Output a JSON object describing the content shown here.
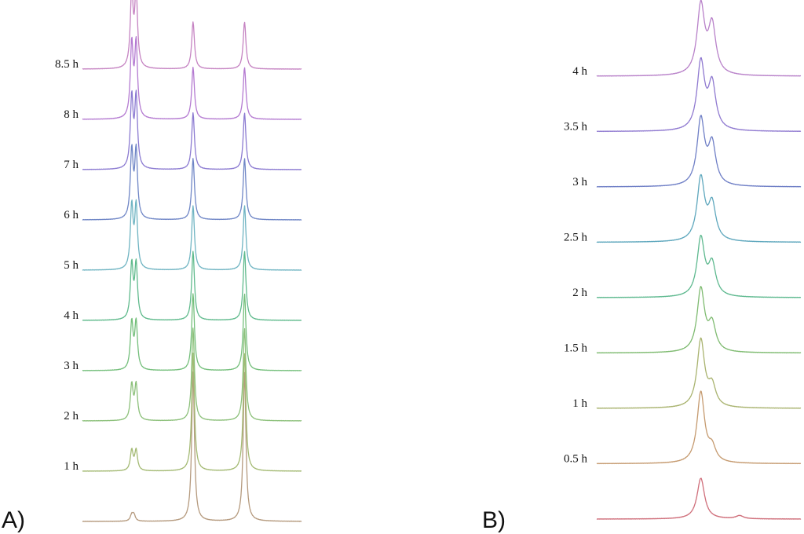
{
  "chart_data": [
    {
      "type": "line",
      "panel": "A)",
      "title": "",
      "xlabel": "",
      "ylabel": "",
      "grid": false,
      "legend": "none",
      "series": [
        {
          "name": "",
          "color": "#b59a7e",
          "peaks": [
            {
              "pos": 0.225,
              "height": 8
            },
            {
              "pos": 0.235,
              "height": 8
            },
            {
              "pos": 0.505,
              "height": 190
            },
            {
              "pos": 0.74,
              "height": 190
            }
          ]
        },
        {
          "name": "1 h",
          "color": "#a4ba74",
          "peaks": [
            {
              "pos": 0.225,
              "height": 26
            },
            {
              "pos": 0.245,
              "height": 26
            },
            {
              "pos": 0.505,
              "height": 150
            },
            {
              "pos": 0.74,
              "height": 150
            }
          ]
        },
        {
          "name": "2 h",
          "color": "#8cc07a",
          "peaks": [
            {
              "pos": 0.225,
              "height": 45
            },
            {
              "pos": 0.245,
              "height": 45
            },
            {
              "pos": 0.505,
              "height": 118
            },
            {
              "pos": 0.74,
              "height": 118
            }
          ]
        },
        {
          "name": "3 h",
          "color": "#74bf7b",
          "peaks": [
            {
              "pos": 0.225,
              "height": 60
            },
            {
              "pos": 0.245,
              "height": 60
            },
            {
              "pos": 0.505,
              "height": 98
            },
            {
              "pos": 0.74,
              "height": 98
            }
          ]
        },
        {
          "name": "4 h",
          "color": "#5fba8c",
          "peaks": [
            {
              "pos": 0.225,
              "height": 70
            },
            {
              "pos": 0.245,
              "height": 70
            },
            {
              "pos": 0.505,
              "height": 88
            },
            {
              "pos": 0.74,
              "height": 88
            }
          ]
        },
        {
          "name": "5 h",
          "color": "#6fb4c2",
          "peaks": [
            {
              "pos": 0.225,
              "height": 80
            },
            {
              "pos": 0.245,
              "height": 80
            },
            {
              "pos": 0.505,
              "height": 82
            },
            {
              "pos": 0.74,
              "height": 82
            }
          ]
        },
        {
          "name": "6 h",
          "color": "#6f86c6",
          "peaks": [
            {
              "pos": 0.225,
              "height": 86
            },
            {
              "pos": 0.245,
              "height": 86
            },
            {
              "pos": 0.505,
              "height": 78
            },
            {
              "pos": 0.74,
              "height": 78
            }
          ]
        },
        {
          "name": "7 h",
          "color": "#8b7ad1",
          "peaks": [
            {
              "pos": 0.225,
              "height": 90
            },
            {
              "pos": 0.245,
              "height": 90
            },
            {
              "pos": 0.505,
              "height": 72
            },
            {
              "pos": 0.74,
              "height": 72
            }
          ]
        },
        {
          "name": "8 h",
          "color": "#b47ad1",
          "peaks": [
            {
              "pos": 0.225,
              "height": 94
            },
            {
              "pos": 0.245,
              "height": 94
            },
            {
              "pos": 0.505,
              "height": 66
            },
            {
              "pos": 0.74,
              "height": 66
            }
          ]
        },
        {
          "name": "8.5 h",
          "color": "#c583c2",
          "peaks": [
            {
              "pos": 0.225,
              "height": 96
            },
            {
              "pos": 0.245,
              "height": 96
            },
            {
              "pos": 0.505,
              "height": 60
            },
            {
              "pos": 0.74,
              "height": 60
            }
          ]
        }
      ]
    },
    {
      "type": "line",
      "panel": "B)",
      "title": "",
      "xlabel": "",
      "ylabel": "",
      "grid": false,
      "legend": "none",
      "series": [
        {
          "name": "",
          "color": "#cf6e7a",
          "peaks": [
            {
              "pos": 0.51,
              "height": 52
            },
            {
              "pos": 0.7,
              "height": 4
            }
          ]
        },
        {
          "name": "0.5 h",
          "color": "#c59a6f",
          "peaks": [
            {
              "pos": 0.51,
              "height": 90
            },
            {
              "pos": 0.565,
              "height": 18
            }
          ]
        },
        {
          "name": "1 h",
          "color": "#a9b36f",
          "peaks": [
            {
              "pos": 0.51,
              "height": 86
            },
            {
              "pos": 0.565,
              "height": 26
            }
          ]
        },
        {
          "name": "1.5 h",
          "color": "#7fbb71",
          "peaks": [
            {
              "pos": 0.51,
              "height": 80
            },
            {
              "pos": 0.565,
              "height": 34
            }
          ]
        },
        {
          "name": "2 h",
          "color": "#5eb98f",
          "peaks": [
            {
              "pos": 0.51,
              "height": 74
            },
            {
              "pos": 0.565,
              "height": 40
            }
          ]
        },
        {
          "name": "2.5 h",
          "color": "#5ea7bd",
          "peaks": [
            {
              "pos": 0.51,
              "height": 80
            },
            {
              "pos": 0.565,
              "height": 46
            }
          ]
        },
        {
          "name": "3 h",
          "color": "#6f7fc6",
          "peaks": [
            {
              "pos": 0.51,
              "height": 84
            },
            {
              "pos": 0.565,
              "height": 52
            }
          ]
        },
        {
          "name": "3.5 h",
          "color": "#8f79d0",
          "peaks": [
            {
              "pos": 0.51,
              "height": 86
            },
            {
              "pos": 0.565,
              "height": 58
            }
          ]
        },
        {
          "name": "4 h",
          "color": "#b881c9",
          "peaks": [
            {
              "pos": 0.51,
              "height": 88
            },
            {
              "pos": 0.565,
              "height": 62
            }
          ]
        }
      ]
    }
  ]
}
